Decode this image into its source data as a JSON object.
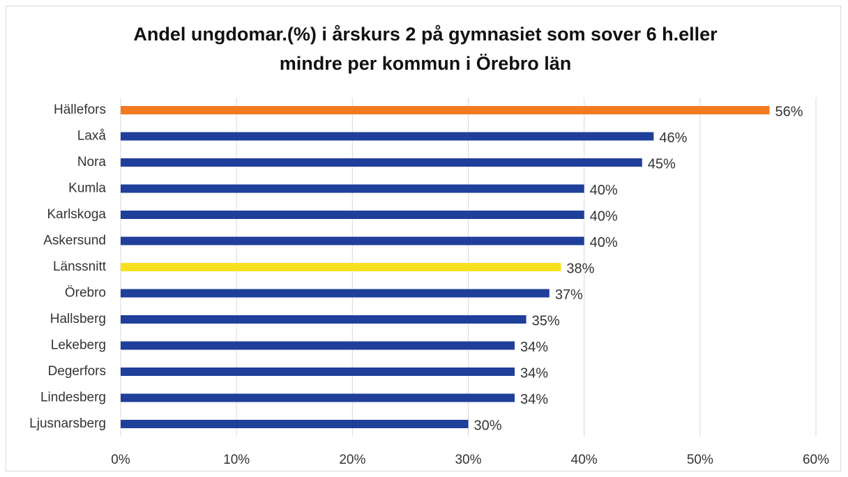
{
  "chart_data": {
    "type": "hbar",
    "title": "Andel ungdomar.(%) i årskurs 2 på gymnasiet som sover 6 h.eller mindre per kommun i Örebro län",
    "categories": [
      "Hällefors",
      "Laxå",
      "Nora",
      "Kumla",
      "Karlskoga",
      "Askersund",
      "Länssnitt",
      "Örebro",
      "Hallsberg",
      "Lekeberg",
      "Degerfors",
      "Lindesberg",
      "Ljusnarsberg"
    ],
    "values": [
      56,
      46,
      45,
      40,
      40,
      40,
      38,
      37,
      35,
      34,
      34,
      34,
      30
    ],
    "value_labels": [
      "56%",
      "46%",
      "45%",
      "40%",
      "40%",
      "40%",
      "38%",
      "37%",
      "35%",
      "34%",
      "34%",
      "34%",
      "30%"
    ],
    "colors": [
      "#f47a20",
      "#1f3f9a",
      "#1f3f9a",
      "#1f3f9a",
      "#1f3f9a",
      "#1f3f9a",
      "#f7e11c",
      "#1f3f9a",
      "#1f3f9a",
      "#1f3f9a",
      "#1f3f9a",
      "#1f3f9a",
      "#1f3f9a"
    ],
    "xlim": [
      0,
      60
    ],
    "xticks": [
      {
        "value": 0,
        "label": "0%"
      },
      {
        "value": 10,
        "label": "10%"
      },
      {
        "value": 20,
        "label": "20%"
      },
      {
        "value": 30,
        "label": "30%"
      },
      {
        "value": 40,
        "label": "40%"
      },
      {
        "value": 50,
        "label": "50%"
      },
      {
        "value": 60,
        "label": "60%"
      }
    ],
    "grid": true
  }
}
